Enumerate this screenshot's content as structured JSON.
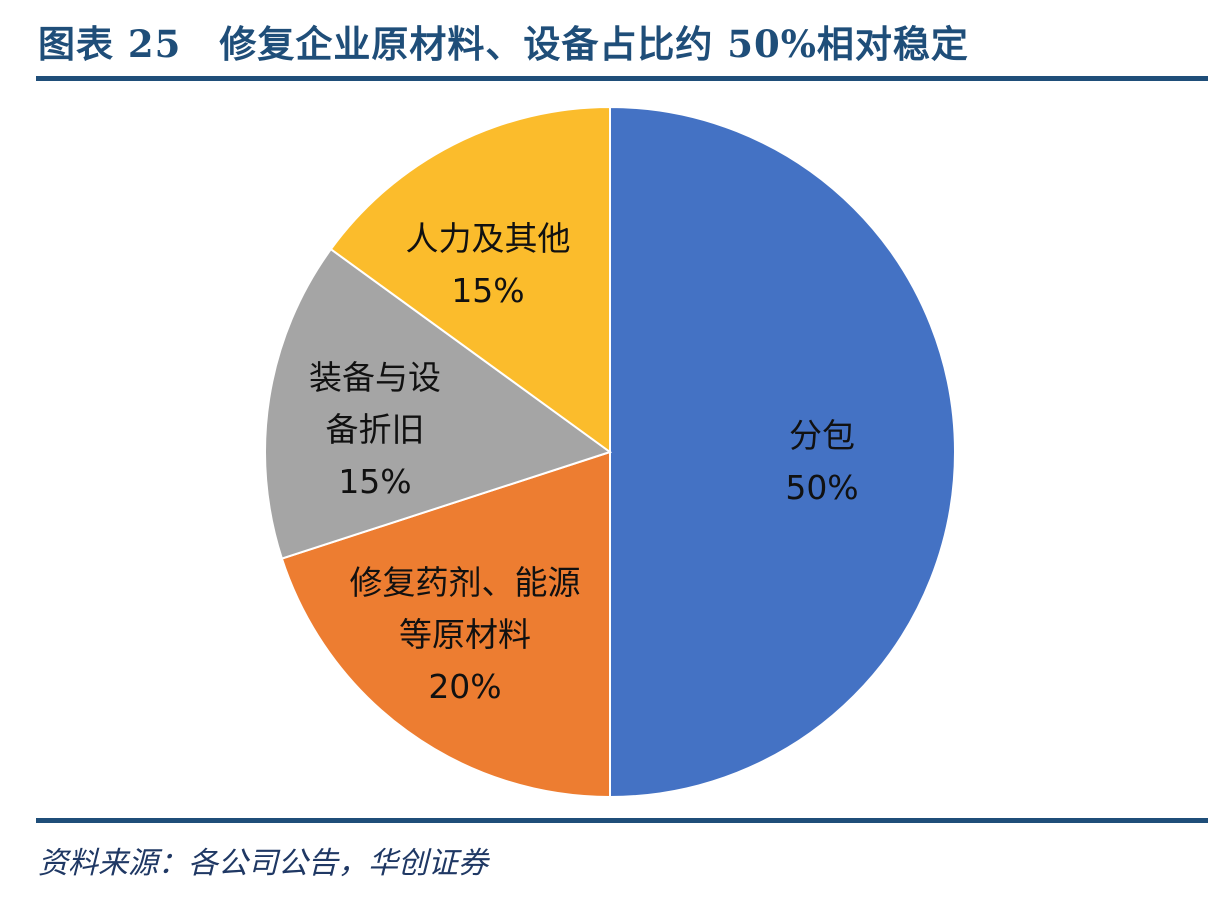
{
  "chart_data": {
    "type": "pie",
    "title": "图表 25　修复企业原材料、设备占比约 50%相对稳定",
    "categories": [
      "分包",
      "修复药剂、能源等原材料",
      "装备与设备折旧",
      "人力及其他"
    ],
    "values": [
      50,
      20,
      15,
      15
    ],
    "value_labels": [
      "50%",
      "20%",
      "15%",
      "15%"
    ],
    "colors": [
      "#4472c4",
      "#ed7d31",
      "#a5a5a5",
      "#fbbc2c"
    ],
    "source": "资料来源：各公司公告，华创证券"
  }
}
